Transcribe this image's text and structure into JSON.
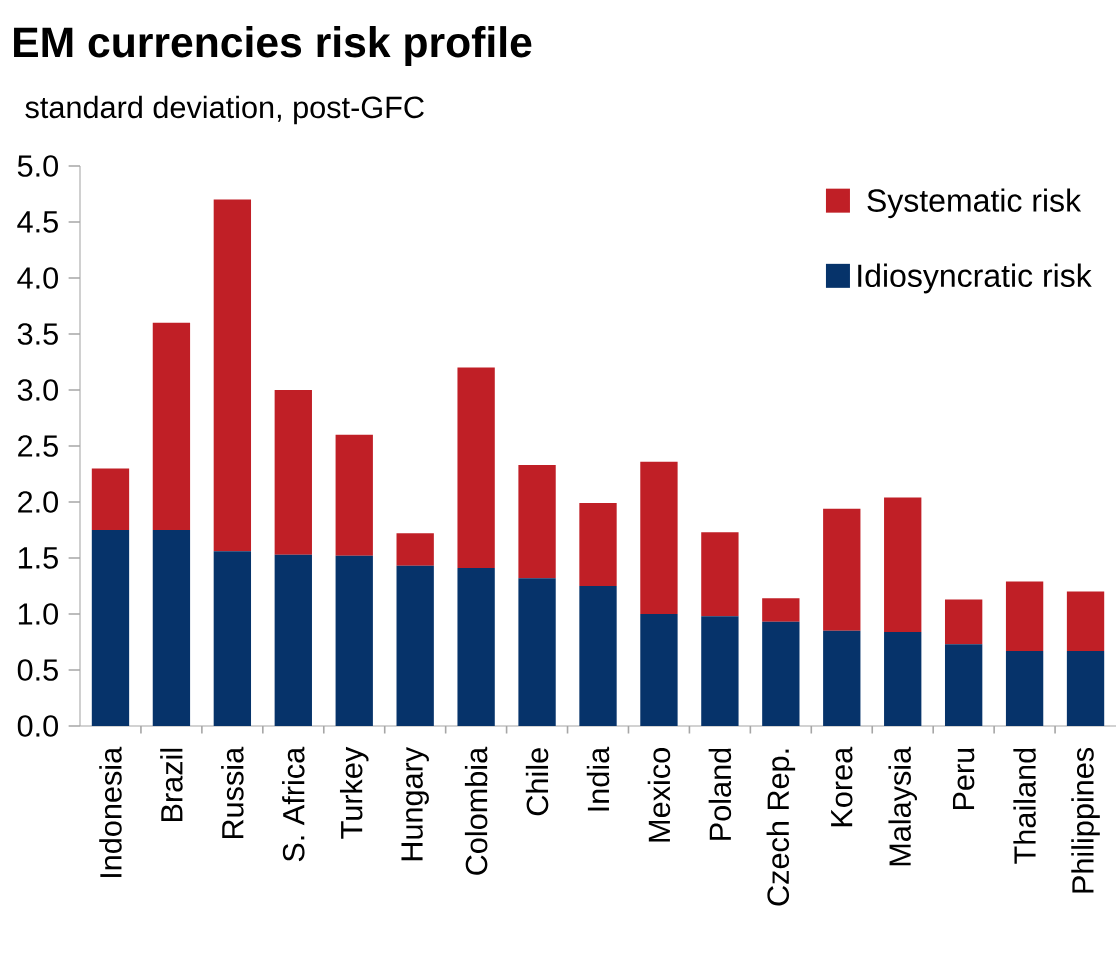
{
  "chart_data": {
    "type": "bar",
    "title": "EM currencies risk profile",
    "subtitle": "standard deviation, post-GFC",
    "categories": [
      "Indonesia",
      "Brazil",
      "Russia",
      "S. Africa",
      "Turkey",
      "Hungary",
      "Colombia",
      "Chile",
      "India",
      "Mexico",
      "Poland",
      "Czech Rep.",
      "Korea",
      "Malaysia",
      "Peru",
      "Thailand",
      "Philippines"
    ],
    "series": [
      {
        "name": "Idiosyncratic risk",
        "color": "#06336a",
        "values": [
          1.75,
          1.75,
          1.56,
          1.53,
          1.52,
          1.43,
          1.41,
          1.32,
          1.25,
          1.0,
          0.98,
          0.93,
          0.85,
          0.84,
          0.73,
          0.67,
          0.67
        ]
      },
      {
        "name": "Systematic risk",
        "color": "#c01f26",
        "values": [
          0.55,
          1.85,
          3.14,
          1.47,
          1.08,
          0.29,
          1.79,
          1.01,
          0.74,
          1.36,
          0.75,
          0.21,
          1.09,
          1.2,
          0.4,
          0.62,
          0.53
        ]
      }
    ],
    "stacked": true,
    "ylim": [
      0,
      5
    ],
    "yticks": [
      {
        "value": 0,
        "label": "0.0"
      },
      {
        "value": 0.5,
        "label": "0.5"
      },
      {
        "value": 1,
        "label": "1.0"
      },
      {
        "value": 1.5,
        "label": "1.5"
      },
      {
        "value": 2,
        "label": "2.0"
      },
      {
        "value": 2.5,
        "label": "2.5"
      },
      {
        "value": 3,
        "label": "3.0"
      },
      {
        "value": 3.5,
        "label": "3.5"
      },
      {
        "value": 4,
        "label": "4.0"
      },
      {
        "value": 4.5,
        "label": "4.5"
      },
      {
        "value": 5,
        "label": "5.0"
      }
    ],
    "legend": "top right"
  }
}
